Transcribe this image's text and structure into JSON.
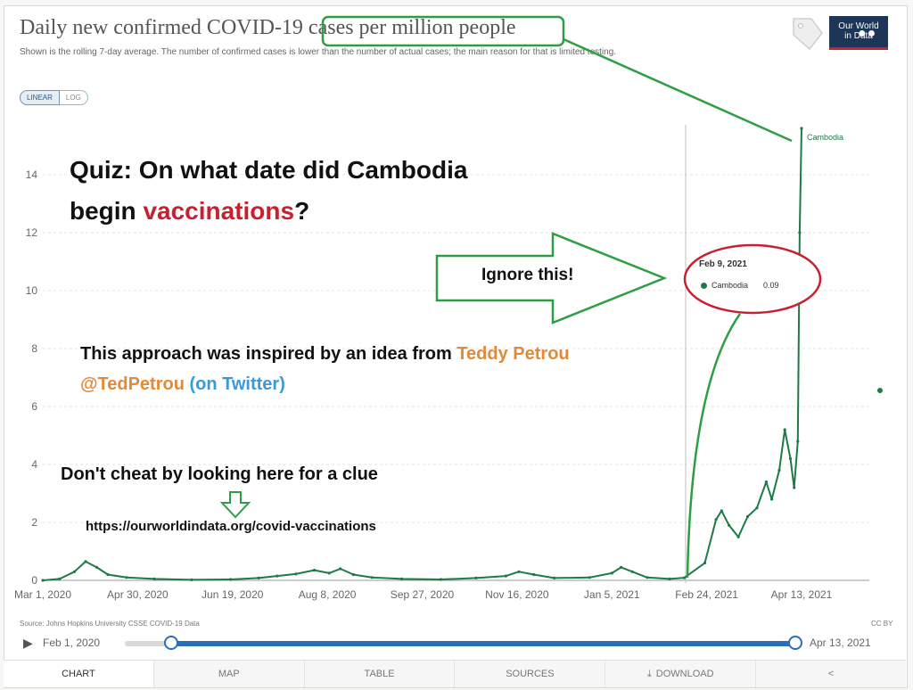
{
  "header": {
    "title": "Daily new confirmed COVID-19 cases per million people",
    "subtitle": "Shown is the rolling 7-day average. The number of confirmed cases is lower than the number of actual cases; the main reason for that is limited testing.",
    "logo_text_1": "Our World",
    "logo_text_2": "in Data"
  },
  "scale_toggle": {
    "linear_label": "LINEAR",
    "log_label": "LOG"
  },
  "overlay": {
    "quiz_line1": "Quiz: On what date did Cambodia",
    "quiz_line2_prefix": "begin ",
    "quiz_line2_highlight": "vaccinations",
    "quiz_line2_suffix": "?",
    "ignore": "Ignore this!",
    "inspired_prefix": "This approach was inspired by an idea from ",
    "inspired_name": "Teddy Petrou",
    "inspired_handle": "@TedPetrou",
    "inspired_suffix": " (on Twitter)",
    "cheat": "Don't cheat by looking here for a clue",
    "url": "https://ourworldindata.org/covid-vaccinations"
  },
  "tooltip": {
    "date": "Feb 9, 2021",
    "series": "Cambodia",
    "value": "0.09"
  },
  "colors": {
    "series": "#1e7a46",
    "highlight": "#c8202e",
    "accent": "#2a6ebb"
  },
  "chart_data": {
    "type": "line",
    "title": "Daily new confirmed COVID-19 cases per million people",
    "xlabel": "",
    "ylabel": "",
    "ylim": [
      0,
      16
    ],
    "yticks": [
      0,
      2,
      4,
      6,
      8,
      10,
      12,
      14
    ],
    "xticks": [
      "Mar 1, 2020",
      "Apr 30, 2020",
      "Jun 19, 2020",
      "Aug 8, 2020",
      "Sep 27, 2020",
      "Nov 16, 2020",
      "Jan 5, 2021",
      "Feb 24, 2021",
      "Apr 13, 2021"
    ],
    "grid": true,
    "series": [
      {
        "name": "Cambodia",
        "points": [
          [
            "2020-03-01",
            0
          ],
          [
            "2020-03-10",
            0.05
          ],
          [
            "2020-03-18",
            0.3
          ],
          [
            "2020-03-24",
            0.65
          ],
          [
            "2020-03-30",
            0.45
          ],
          [
            "2020-04-05",
            0.2
          ],
          [
            "2020-04-15",
            0.1
          ],
          [
            "2020-04-30",
            0.05
          ],
          [
            "2020-05-20",
            0.02
          ],
          [
            "2020-06-10",
            0.03
          ],
          [
            "2020-06-25",
            0.08
          ],
          [
            "2020-07-05",
            0.15
          ],
          [
            "2020-07-15",
            0.22
          ],
          [
            "2020-07-25",
            0.35
          ],
          [
            "2020-08-02",
            0.25
          ],
          [
            "2020-08-08",
            0.4
          ],
          [
            "2020-08-15",
            0.2
          ],
          [
            "2020-08-25",
            0.1
          ],
          [
            "2020-09-10",
            0.05
          ],
          [
            "2020-10-01",
            0.03
          ],
          [
            "2020-10-20",
            0.08
          ],
          [
            "2020-11-05",
            0.15
          ],
          [
            "2020-11-12",
            0.3
          ],
          [
            "2020-11-20",
            0.2
          ],
          [
            "2020-12-01",
            0.08
          ],
          [
            "2020-12-20",
            0.1
          ],
          [
            "2021-01-01",
            0.25
          ],
          [
            "2021-01-06",
            0.45
          ],
          [
            "2021-01-12",
            0.3
          ],
          [
            "2021-01-20",
            0.1
          ],
          [
            "2021-02-01",
            0.05
          ],
          [
            "2021-02-09",
            0.09
          ],
          [
            "2021-02-20",
            0.6
          ],
          [
            "2021-02-26",
            2.1
          ],
          [
            "2021-03-01",
            2.4
          ],
          [
            "2021-03-05",
            1.9
          ],
          [
            "2021-03-10",
            1.5
          ],
          [
            "2021-03-15",
            2.2
          ],
          [
            "2021-03-20",
            2.5
          ],
          [
            "2021-03-25",
            3.4
          ],
          [
            "2021-03-28",
            2.8
          ],
          [
            "2021-04-01",
            3.8
          ],
          [
            "2021-04-04",
            5.2
          ],
          [
            "2021-04-07",
            4.2
          ],
          [
            "2021-04-09",
            3.2
          ],
          [
            "2021-04-11",
            4.8
          ],
          [
            "2021-04-12",
            12.0
          ],
          [
            "2021-04-13",
            15.6
          ]
        ]
      }
    ],
    "annotations": [
      "Cambodia"
    ]
  },
  "footer": {
    "source": "Source: Johns Hopkins University CSSE COVID-19 Data",
    "license": "CC BY",
    "start_date": "Feb 1, 2020",
    "end_date": "Apr 13, 2021"
  },
  "tabs": [
    "CHART",
    "MAP",
    "TABLE",
    "SOURCES",
    "DOWNLOAD",
    ""
  ]
}
